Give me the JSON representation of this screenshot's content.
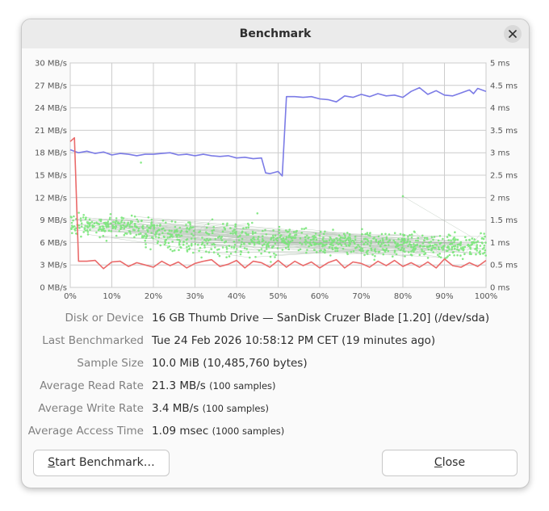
{
  "window": {
    "title": "Benchmark"
  },
  "info": [
    {
      "label": "Disk or Device",
      "value": "16 GB Thumb Drive — SanDisk Cruzer Blade [1.20] (/dev/sda)",
      "note": ""
    },
    {
      "label": "Last Benchmarked",
      "value": "Tue 24 Feb 2026 10:58:12 PM CET (19 minutes ago)",
      "note": ""
    },
    {
      "label": "Sample Size",
      "value": "10.0 MiB (10,485,760 bytes)",
      "note": ""
    },
    {
      "label": "Average Read Rate",
      "value": "21.3 MB/s",
      "note": "(100 samples)"
    },
    {
      "label": "Average Write Rate",
      "value": "3.4 MB/s",
      "note": "(100 samples)"
    },
    {
      "label": "Average Access Time",
      "value": "1.09 msec",
      "note": "(1000 samples)"
    }
  ],
  "buttons": {
    "start_mnemonic": "S",
    "start_rest": "tart Benchmark…",
    "close_mnemonic": "C",
    "close_rest": "lose"
  },
  "colors": {
    "read": "#7b7be6",
    "write": "#ea6a6a",
    "access": "#74e674",
    "access_lines": "#5a7a5a",
    "grid": "#cccccc"
  },
  "icons": {
    "close": "close-icon"
  },
  "chart_data": {
    "type": "line",
    "x_ticks": [
      "0%",
      "10%",
      "20%",
      "30%",
      "40%",
      "50%",
      "60%",
      "70%",
      "80%",
      "90%",
      "100%"
    ],
    "y_left_ticks": [
      "0 MB/s",
      "3 MB/s",
      "6 MB/s",
      "9 MB/s",
      "12 MB/s",
      "15 MB/s",
      "18 MB/s",
      "21 MB/s",
      "24 MB/s",
      "27 MB/s",
      "30 MB/s"
    ],
    "y_right_ticks": [
      "0 ms",
      "0.5 ms",
      "1 ms",
      "1.5 ms",
      "2 ms",
      "2.5 ms",
      "3 ms",
      "3.5 ms",
      "4 ms",
      "4.5 ms",
      "5 ms"
    ],
    "xlim": [
      0,
      100
    ],
    "ylim_left": [
      0,
      30
    ],
    "ylim_right": [
      0,
      5
    ],
    "grid": true,
    "series": [
      {
        "name": "read",
        "axis": "left",
        "x": [
          0,
          2,
          4,
          6,
          8,
          10,
          12,
          14,
          16,
          18,
          20,
          22,
          24,
          26,
          28,
          30,
          32,
          34,
          36,
          38,
          40,
          42,
          44,
          46,
          47,
          48,
          50,
          51,
          52,
          54,
          56,
          58,
          60,
          62,
          64,
          66,
          68,
          70,
          72,
          74,
          76,
          78,
          80,
          82,
          84,
          86,
          88,
          90,
          92,
          94,
          96,
          97,
          98,
          100
        ],
        "y": [
          18.4,
          18.0,
          18.2,
          17.9,
          18.1,
          17.7,
          17.9,
          17.8,
          17.6,
          17.8,
          17.8,
          17.9,
          18.0,
          17.7,
          17.8,
          17.6,
          17.8,
          17.6,
          17.5,
          17.6,
          17.3,
          17.4,
          17.2,
          17.3,
          15.3,
          15.2,
          15.5,
          14.9,
          25.5,
          25.5,
          25.4,
          25.5,
          25.2,
          25.1,
          24.8,
          25.6,
          25.4,
          25.8,
          25.5,
          25.9,
          25.6,
          25.7,
          25.4,
          26.2,
          26.7,
          25.8,
          26.3,
          25.7,
          25.6,
          26.0,
          26.4,
          25.9,
          26.6,
          26.2
        ]
      },
      {
        "name": "write",
        "axis": "left",
        "x": [
          0,
          1,
          2,
          4,
          6,
          8,
          10,
          12,
          14,
          16,
          18,
          20,
          22,
          24,
          26,
          28,
          30,
          32,
          34,
          36,
          38,
          40,
          42,
          44,
          46,
          48,
          50,
          52,
          54,
          56,
          58,
          60,
          62,
          64,
          66,
          68,
          70,
          72,
          74,
          76,
          78,
          80,
          82,
          84,
          86,
          88,
          90,
          92,
          94,
          96,
          98,
          100
        ],
        "y": [
          19.5,
          20.0,
          3.5,
          3.5,
          3.6,
          2.5,
          3.4,
          3.5,
          2.8,
          3.3,
          3.0,
          2.7,
          3.5,
          2.9,
          3.4,
          2.6,
          3.2,
          3.5,
          3.7,
          2.8,
          3.1,
          3.6,
          2.6,
          3.5,
          3.3,
          2.7,
          3.6,
          2.7,
          3.5,
          2.9,
          3.4,
          2.6,
          3.3,
          3.7,
          2.6,
          3.4,
          3.2,
          2.7,
          3.5,
          2.9,
          3.6,
          2.8,
          3.3,
          2.7,
          3.4,
          2.6,
          3.8,
          2.9,
          2.7,
          3.3,
          2.8,
          3.6
        ]
      },
      {
        "name": "access",
        "axis": "right",
        "style": "scatter",
        "trend_x": [
          0,
          10,
          20,
          30,
          40,
          50,
          60,
          70,
          80,
          90,
          100
        ],
        "trend_y": [
          1.38,
          1.36,
          1.3,
          1.25,
          1.2,
          1.1,
          1.02,
          0.98,
          0.95,
          0.92,
          0.9
        ],
        "spread_ms": 0.25,
        "count": 1000,
        "outliers": [
          {
            "x": 17,
            "y": 2.78
          },
          {
            "x": 80,
            "y": 2.03
          },
          {
            "x": 45,
            "y": 1.65
          }
        ]
      }
    ]
  }
}
